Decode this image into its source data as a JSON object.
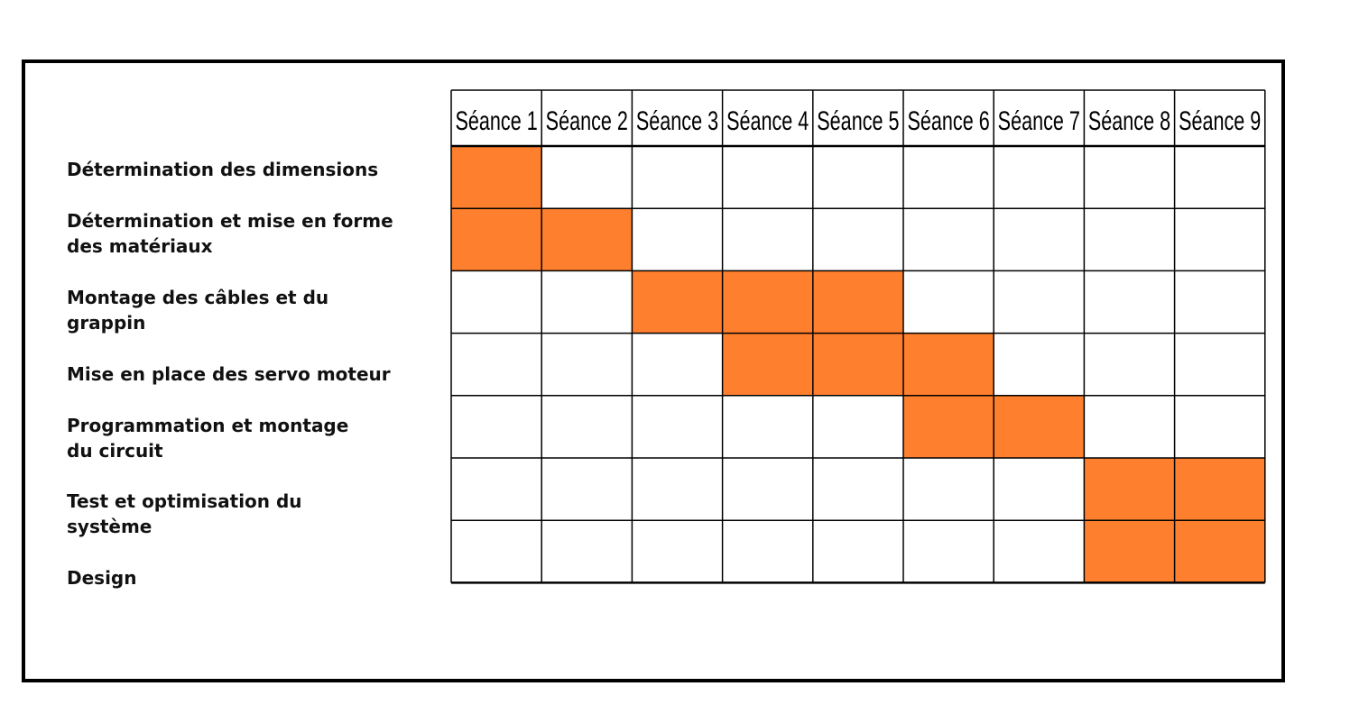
{
  "chart_data": {
    "type": "table",
    "columns": [
      "Séance 1",
      "Séance 2",
      "Séance 3",
      "Séance 4",
      "Séance 5",
      "Séance 6",
      "Séance 7",
      "Séance 8",
      "Séance 9"
    ],
    "tasks": [
      {
        "label": "Détermination des dimensions",
        "start": 1,
        "end": 1
      },
      {
        "label": "Détermination et mise en forme\ndes matériaux",
        "start": 1,
        "end": 2
      },
      {
        "label": "Montage des câbles et du\ngrappin",
        "start": 3,
        "end": 5
      },
      {
        "label": "Mise en place des servo moteur",
        "start": 4,
        "end": 6
      },
      {
        "label": "Programmation et montage\ndu circuit",
        "start": 6,
        "end": 7
      },
      {
        "label": "Test et optimisation du\nsystème",
        "start": 8,
        "end": 9
      },
      {
        "label": "Design",
        "start": 8,
        "end": 9
      }
    ],
    "colors": {
      "fill": "#fe7f2d",
      "grid": "#000000",
      "background": "#ffffff"
    }
  },
  "tasks_labels": {
    "t0": "Détermination des dimensions",
    "t1": "Détermination et mise en forme\ndes matériaux",
    "t2": "Montage des câbles et du\ngrappin",
    "t3": "Mise en place des servo moteur",
    "t4": "Programmation et montage\ndu circuit",
    "t5": "Test et optimisation du\nsystème",
    "t6": "Design"
  }
}
